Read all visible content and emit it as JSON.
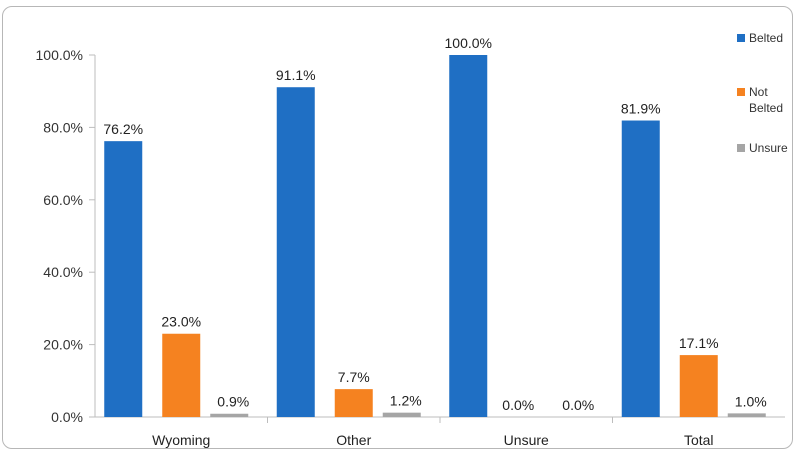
{
  "chart_data": {
    "type": "bar",
    "categories": [
      "Wyoming",
      "Other",
      "Unsure",
      "Total"
    ],
    "series": [
      {
        "name": "Belted",
        "values": [
          76.2,
          91.1,
          100.0,
          81.9
        ],
        "labels": [
          "76.2%",
          "91.1%",
          "100.0%",
          "81.9%"
        ],
        "color": "#1f6fc4"
      },
      {
        "name": "Not Belted",
        "values": [
          23.0,
          7.7,
          0.0,
          17.1
        ],
        "labels": [
          "23.0%",
          "7.7%",
          "0.0%",
          "17.1%"
        ],
        "color": "#f58220"
      },
      {
        "name": "Unsure",
        "values": [
          0.9,
          1.2,
          0.0,
          1.0
        ],
        "labels": [
          "0.9%",
          "1.2%",
          "0.0%",
          "1.0%"
        ],
        "color": "#a5a5a5"
      }
    ],
    "ylim": [
      0,
      100
    ],
    "yticks": [
      0,
      20,
      40,
      60,
      80,
      100
    ],
    "ytick_labels": [
      "0.0%",
      "20.0%",
      "40.0%",
      "60.0%",
      "80.0%",
      "100.0%"
    ],
    "grid": false,
    "legend_position": "right"
  }
}
